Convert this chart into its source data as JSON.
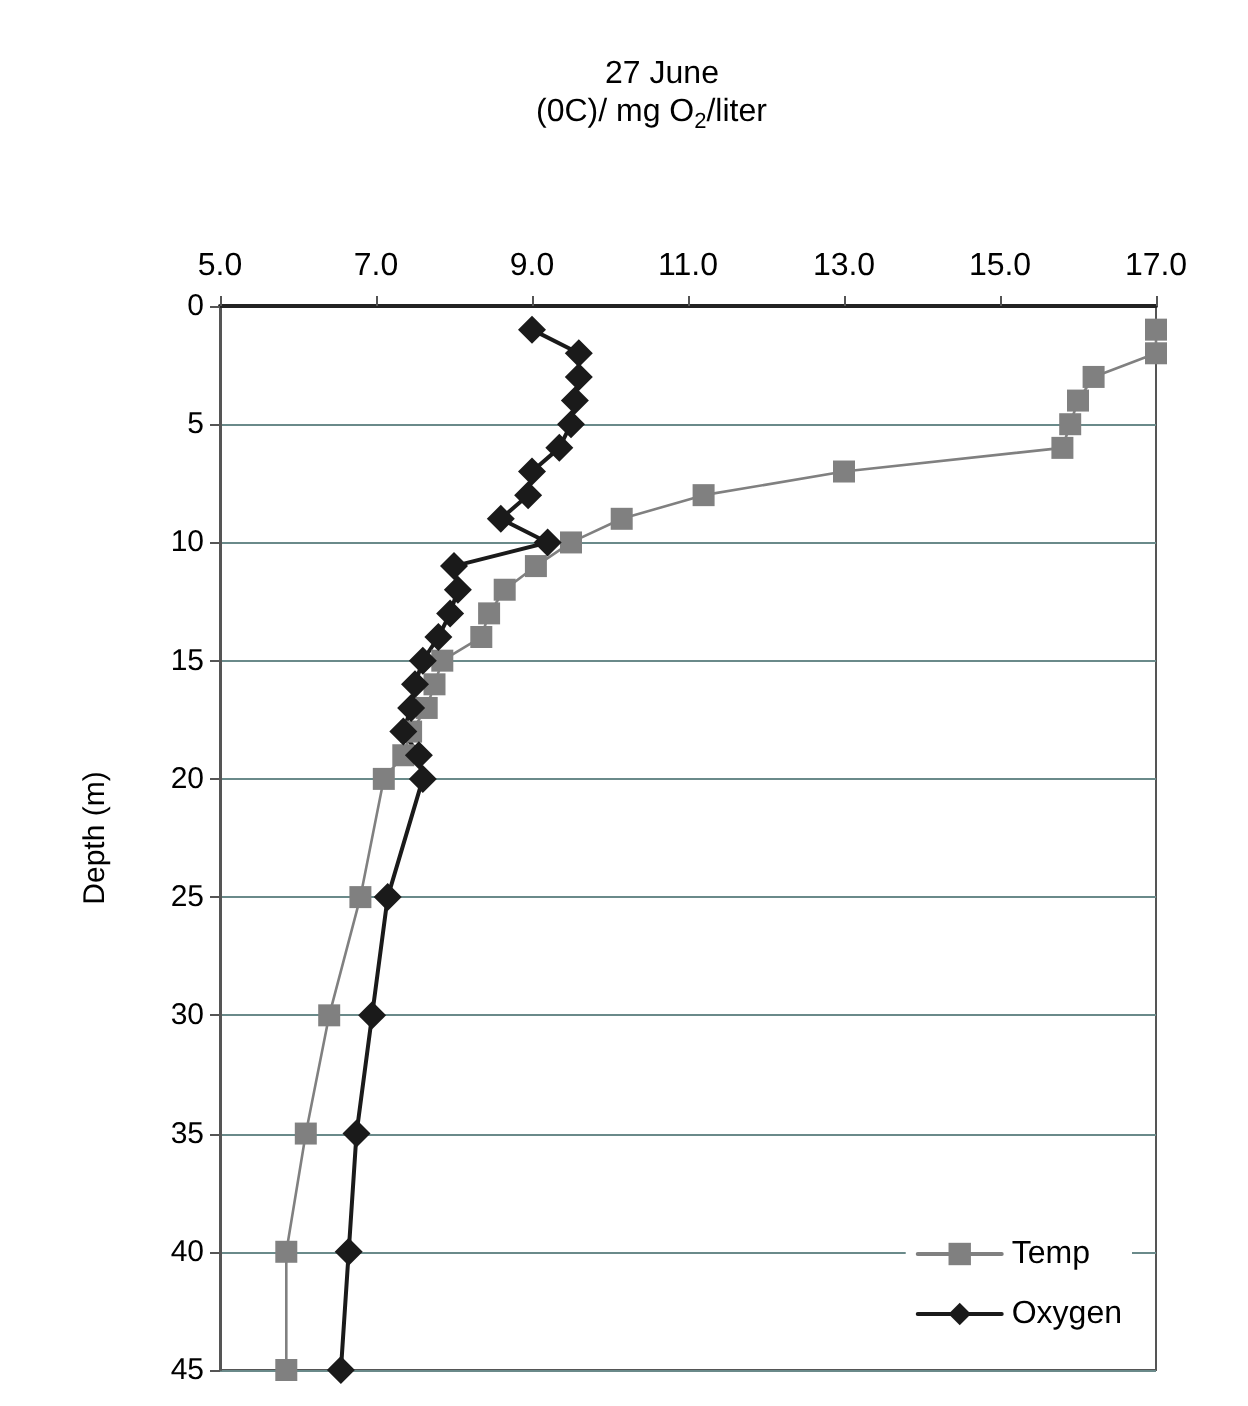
{
  "chart_data": {
    "type": "line",
    "title": "27 June",
    "xlabel": "(0C)/ mg O$_{2}$/liter",
    "ylabel": "Depth (m)",
    "xlim": [
      5,
      17
    ],
    "xticks": [
      {
        "value": 5,
        "label": "5.0"
      },
      {
        "value": 7,
        "label": "7.0"
      },
      {
        "value": 9,
        "label": "9.0"
      },
      {
        "value": 11,
        "label": "11.0"
      },
      {
        "value": 13,
        "label": "13.0"
      },
      {
        "value": 15,
        "label": "15.0"
      },
      {
        "value": 17,
        "label": "17.0"
      }
    ],
    "ylim": [
      45,
      0
    ],
    "yticks": [
      0,
      5,
      10,
      15,
      20,
      25,
      30,
      35,
      40,
      45
    ],
    "grid": "y",
    "legend": "bottom right",
    "series": [
      {
        "name": "Temp",
        "color": "#808080",
        "marker": "square",
        "x": [
          17.0,
          17.0,
          16.2,
          16.0,
          15.9,
          15.8,
          13.0,
          11.2,
          10.15,
          9.5,
          9.05,
          8.65,
          8.45,
          8.35,
          7.85,
          7.75,
          7.65,
          7.45,
          7.35,
          7.1,
          6.8,
          6.4,
          6.1,
          5.85,
          5.85
        ],
        "values": [
          1,
          2,
          3,
          4,
          5,
          6,
          7,
          8,
          9,
          10,
          11,
          12,
          13,
          14,
          15,
          16,
          17,
          18,
          19,
          20,
          25,
          30,
          35,
          40,
          45
        ]
      },
      {
        "name": "Oxygen",
        "color": "#1a1a1a",
        "marker": "diamond",
        "x": [
          9.0,
          9.6,
          9.6,
          9.55,
          9.5,
          9.35,
          9.0,
          8.95,
          8.6,
          9.2,
          8.0,
          8.05,
          7.95,
          7.8,
          7.6,
          7.5,
          7.45,
          7.35,
          7.55,
          7.6,
          7.15,
          6.95,
          6.75,
          6.65,
          6.55
        ],
        "values": [
          1,
          2,
          3,
          4,
          5,
          6,
          7,
          8,
          9,
          10,
          11,
          12,
          13,
          14,
          15,
          16,
          17,
          18,
          19,
          20,
          25,
          30,
          35,
          40,
          45
        ]
      }
    ]
  }
}
